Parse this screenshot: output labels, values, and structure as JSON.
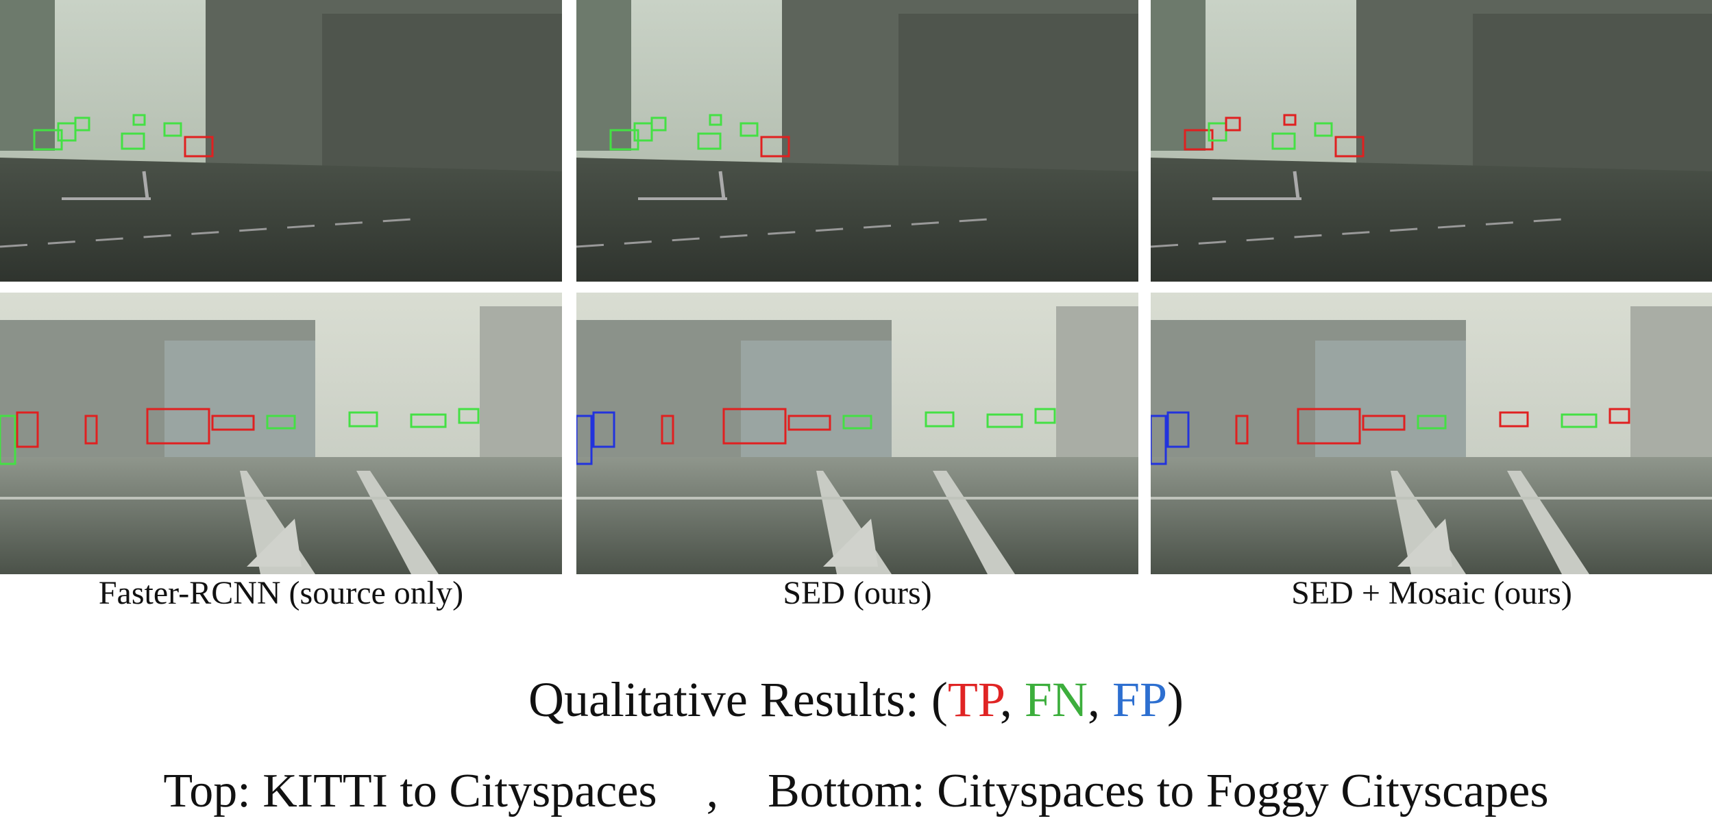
{
  "captions": [
    "Faster-RCNN (source only)",
    "SED (ours)",
    "SED + Mosaic (ours)"
  ],
  "legend": {
    "prefix": "Qualitative Results: (",
    "items": [
      {
        "label": "TP",
        "color": "#e02424"
      },
      {
        "label": "FN",
        "color": "#3cae3c"
      },
      {
        "label": "FP",
        "color": "#2d6fd0"
      }
    ],
    "separator": ", ",
    "suffix": ")"
  },
  "footer": {
    "top": "Top: KITTI to Cityspaces",
    "separator": ",",
    "bottom": "Bottom: Cityspaces to Foggy Cityscapes"
  }
}
